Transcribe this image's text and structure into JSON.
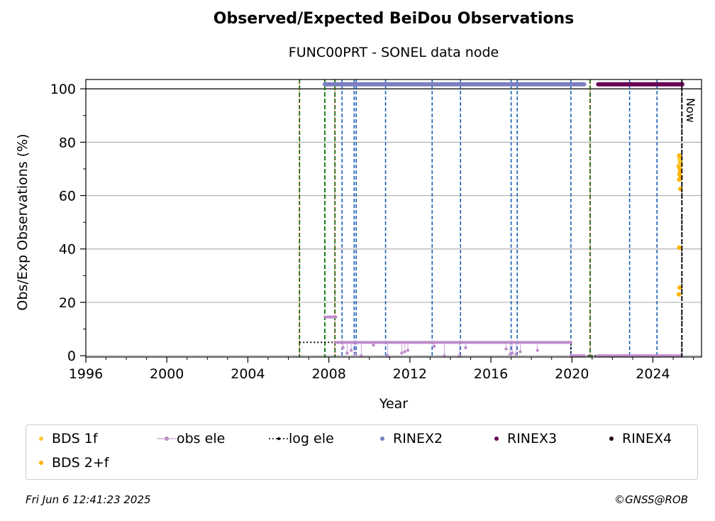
{
  "title": "Observed/Expected BeiDou Observations",
  "subtitle": "FUNC00PRT - SONEL data node",
  "now_label": "Now",
  "timestamp": "Fri Jun  6 12:41:23 2025",
  "credit": "©GNSS@ROB",
  "colors": {
    "bds1f": "#ffcc33",
    "bds2f": "#ffb400",
    "obs_ele": "#c08ccc",
    "log_ele": "#000000",
    "rinex2": "#7b7fc0",
    "rinex3": "#660055",
    "rinex4": "#220011",
    "green_line": "#007700",
    "blue_line": "#1a5fb4",
    "red_dot": "#dd0000"
  },
  "chart_data": {
    "type": "scatter",
    "xlabel": "Year",
    "ylabel": "Obs/Exp Observations (%)",
    "xlim": [
      1996,
      2026.4
    ],
    "ylim": [
      -0.5,
      103.5
    ],
    "xticks": [
      1996,
      2000,
      2004,
      2008,
      2012,
      2016,
      2020,
      2024
    ],
    "yticks": [
      0,
      20,
      40,
      60,
      80,
      100
    ],
    "grid": "horizontal",
    "legend_position": "bottom",
    "legend": [
      "BDS 1f",
      "obs ele",
      "log ele",
      "RINEX2",
      "RINEX3",
      "RINEX4",
      "BDS 2+f"
    ],
    "now_x": 2025.43,
    "green_dashed_x": [
      2006.55,
      2007.8,
      2008.3,
      2020.9
    ],
    "red_dotted_x": [
      2006.55,
      2008.3,
      2020.9
    ],
    "blue_dashed_x": [
      2008.65,
      2009.25,
      2009.35,
      2010.8,
      2013.1,
      2014.5,
      2017.0,
      2017.3,
      2019.95,
      2022.85,
      2024.2
    ],
    "rinex2_span": [
      2007.8,
      2020.6
    ],
    "rinex3_span": [
      2021.3,
      2025.45
    ],
    "series_y_level": 101.7,
    "log_ele": [
      [
        2006.55,
        5
      ],
      [
        2019.95,
        5
      ],
      [
        2019.95,
        0
      ],
      [
        2025.43,
        0
      ],
      [
        2025.43,
        100
      ]
    ],
    "obs_ele_runs": [
      {
        "x": [
          2007.8,
          2008.35
        ],
        "y": 14.5
      },
      {
        "x": [
          2008.35,
          2019.95
        ],
        "y": 5
      },
      {
        "x": [
          2019.95,
          2020.6
        ],
        "y": 0
      },
      {
        "x": [
          2021.3,
          2025.4
        ],
        "y": 0
      }
    ],
    "obs_ele_outliers": [
      [
        2008.7,
        3
      ],
      [
        2008.9,
        1
      ],
      [
        2009.1,
        2
      ],
      [
        2009.3,
        0.5
      ],
      [
        2009.6,
        0
      ],
      [
        2010.2,
        4
      ],
      [
        2010.9,
        0
      ],
      [
        2011.6,
        1
      ],
      [
        2011.75,
        1.5
      ],
      [
        2011.9,
        2
      ],
      [
        2013.2,
        3.5
      ],
      [
        2013.7,
        0
      ],
      [
        2014.45,
        0
      ],
      [
        2014.75,
        3
      ],
      [
        2016.75,
        2.5
      ],
      [
        2016.95,
        0.5
      ],
      [
        2017.05,
        1
      ],
      [
        2017.25,
        0.5
      ],
      [
        2017.45,
        1.5
      ],
      [
        2018.3,
        2
      ]
    ],
    "bds_2f": [
      [
        2025.3,
        75
      ],
      [
        2025.32,
        74
      ],
      [
        2025.34,
        73
      ],
      [
        2025.36,
        72
      ],
      [
        2025.28,
        71
      ],
      [
        2025.33,
        70
      ],
      [
        2025.35,
        69
      ],
      [
        2025.31,
        68
      ],
      [
        2025.37,
        67
      ],
      [
        2025.3,
        66
      ],
      [
        2025.36,
        62.5
      ],
      [
        2025.3,
        40.5
      ],
      [
        2025.32,
        25.5
      ],
      [
        2025.28,
        23
      ]
    ],
    "bds_1f": [
      [
        2025.34,
        73.5
      ],
      [
        2025.38,
        71.5
      ]
    ]
  },
  "legend_items": {
    "bds1f": "BDS 1f",
    "obs_ele": "obs ele",
    "log_ele": "log ele",
    "rinex2": "RINEX2",
    "rinex3": "RINEX3",
    "rinex4": "RINEX4",
    "bds2f": "BDS 2+f"
  }
}
